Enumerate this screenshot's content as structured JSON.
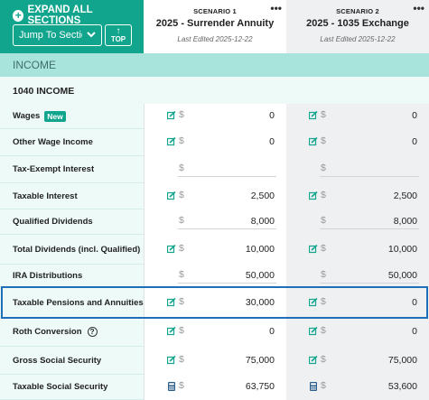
{
  "toolbar": {
    "expand_label": "EXPAND ALL SECTIONS",
    "jump_label": "Jump To Section",
    "top_label": "TOP"
  },
  "scenarios": [
    {
      "number": "SCENARIO 1",
      "title": "2025 - Surrender Annuity",
      "edited": "Last Edited 2025-12-22"
    },
    {
      "number": "SCENARIO 2",
      "title": "2025 - 1035 Exchange",
      "edited": "Last Edited 2025-12-22"
    }
  ],
  "section": {
    "title": "INCOME"
  },
  "subsection": {
    "title": "1040 INCOME"
  },
  "currency_symbol": "$",
  "rows": [
    {
      "label": "Wages",
      "badge": "New",
      "s1": "0",
      "s2": "0",
      "icon1": "edit-icon",
      "icon2": "edit-icon"
    },
    {
      "label": "Other Wage Income",
      "s1": "0",
      "s2": "0",
      "icon1": "edit-icon",
      "icon2": "edit-icon"
    },
    {
      "label": "Tax-Exempt Interest",
      "s1": "",
      "s2": "",
      "icon1": "",
      "icon2": ""
    },
    {
      "label": "Taxable Interest",
      "s1": "2,500",
      "s2": "2,500",
      "icon1": "edit-icon",
      "icon2": "edit-icon"
    },
    {
      "label": "Qualified Dividends",
      "s1": "8,000",
      "s2": "8,000",
      "icon1": "",
      "icon2": ""
    },
    {
      "label": "Total Dividends (incl. Qualified)",
      "s1": "10,000",
      "s2": "10,000",
      "icon1": "edit-icon",
      "icon2": "edit-icon"
    },
    {
      "label": "IRA Distributions",
      "s1": "50,000",
      "s2": "50,000",
      "icon1": "",
      "icon2": ""
    },
    {
      "label": "Taxable Pensions and Annuities",
      "s1": "30,000",
      "s2": "0",
      "icon1": "edit-icon",
      "icon2": "edit-icon"
    },
    {
      "label": "Roth Conversion",
      "help": "?",
      "s1": "0",
      "s2": "0",
      "icon1": "edit-icon",
      "icon2": "edit-icon"
    },
    {
      "label": "Gross Social Security",
      "s1": "75,000",
      "s2": "75,000",
      "icon1": "edit-icon",
      "icon2": "edit-icon"
    },
    {
      "label": "Taxable Social Security",
      "s1": "63,750",
      "s2": "53,600",
      "icon1": "calculator-icon",
      "icon2": "calculator-icon"
    }
  ],
  "colors": {
    "accent": "#12a58d",
    "highlight": "#1e6fb8",
    "section_bg": "#a9e4dc"
  }
}
